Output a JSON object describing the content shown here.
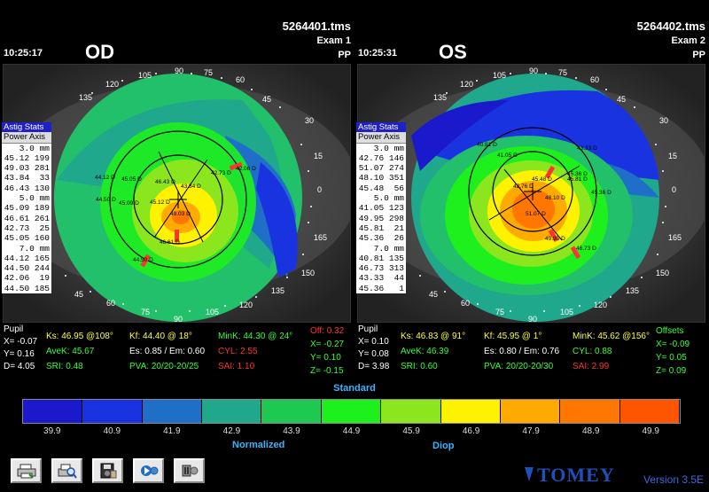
{
  "od": {
    "file": "5264401.tms",
    "exam": "Exam 1",
    "operator": "PP",
    "time": "10:25:17",
    "eye": "OD",
    "stats_header": "Astig Stats",
    "stats_subheader": "Power Axis",
    "stats_rows": [
      "3.0 mm",
      "45.12 199",
      "49.03 281",
      "43.84  33",
      "46.43 130",
      "5.0 mm",
      "45.09 189",
      "46.61 261",
      "42.73  25",
      "45.05 160",
      "7.0 mm",
      "44.12 165",
      "44.50 244",
      "42.06  19",
      "44.50 185"
    ],
    "map_labels": [
      "44.12 D",
      "45.05 D",
      "46.43 D",
      "42.73 D",
      "42.06 D",
      "44.50 D",
      "45.09 D",
      "43.84 D",
      "45.12 D",
      "49.03 D",
      "46.61 D",
      "44.50 D"
    ],
    "angles": {
      "a90": "90",
      "a75": "75",
      "a105": "105",
      "a120": "120",
      "a135": "135",
      "a150": "150",
      "a165": "165",
      "a0": "0",
      "a15": "15",
      "a30": "30",
      "a45": "45",
      "a60": "60"
    },
    "pupil_label": "Pupil",
    "pupil_x": "X= -0.07",
    "pupil_y": "Y=  0.16",
    "pupil_d": "D=  4.05",
    "ks": "Ks: 46.95 @108°",
    "kf": "Kf: 44.40 @ 18°",
    "mink": "MinK: 44.30 @ 24°",
    "off": "Off:  0.32",
    "avek": "AveK: 45.67",
    "es": "Es: 0.85 / Em: 0.60",
    "cyl": "CYL:  2.55",
    "off_x": "X= -0.27",
    "sri": "SRI: 0.48",
    "pva": "PVA: 20/20-20/25",
    "sai": "SAI: 1.10",
    "off_y": "Y=  0.10",
    "off_z": "Z= -0.15"
  },
  "os": {
    "file": "5264402.tms",
    "exam": "Exam 2",
    "operator": "PP",
    "time": "10:25:31",
    "eye": "OS",
    "stats_header": "Astig Stats",
    "stats_subheader": "Power Axis",
    "stats_rows": [
      "3.0 mm",
      "42.76 146",
      "51.07 274",
      "48.10 351",
      "45.48  56",
      "5.0 mm",
      "41.05 123",
      "49.95 298",
      "45.81  21",
      "45.36  26",
      "7.0 mm",
      "40.81 135",
      "46.73 313",
      "43.33  44",
      "45.36   1"
    ],
    "map_labels": [
      "40.81 D",
      "41.05 D",
      "43.33 D",
      "45.36 D",
      "45.81 D",
      "42.76 D",
      "45.48 D",
      "45.36 D",
      "48.10 D",
      "51.07 D",
      "49.95 D",
      "46.73 D"
    ],
    "angles": {
      "a90": "90",
      "a75": "75",
      "a105": "105",
      "a120": "120",
      "a135": "135",
      "a150": "150",
      "a165": "165",
      "a0": "0",
      "a15": "15",
      "a30": "30",
      "a45": "45",
      "a60": "60"
    },
    "pupil_label": "Pupil",
    "pupil_x": "X=  0.10",
    "pupil_y": "Y=  0.08",
    "pupil_d": "D=  3.98",
    "ks": "Ks: 46.83 @ 91°",
    "kf": "Kf: 45.95 @  1°",
    "mink": "MinK: 45.62 @156°",
    "off": "Offsets",
    "avek": "AveK: 46.39",
    "es": "Es: 0.80 / Em: 0.76",
    "cyl": "CYL:  0.88",
    "off_x": "X= -0.09",
    "sri": "SRI: 0.60",
    "pva": "PVA: 20/20-20/30",
    "sai": "SAI: 2.99",
    "off_y": "Y=  0.05",
    "off_z": "Z=  0.09"
  },
  "scale": {
    "title": "Standard",
    "normalized": "Normalized",
    "unit": "Diop",
    "values": [
      "39.9",
      "40.9",
      "41.9",
      "42.9",
      "43.9",
      "44.9",
      "45.9",
      "46.9",
      "47.9",
      "48.9",
      "49.9"
    ],
    "colors": [
      "#1a1acc",
      "#1a33e0",
      "#1f6fc8",
      "#1fa88c",
      "#1fc850",
      "#1ef01e",
      "#8ce61e",
      "#fff200",
      "#ffaa00",
      "#ff7700",
      "#ff5500"
    ]
  },
  "toolbar": {
    "icons": [
      "print-icon",
      "print-preview-icon",
      "save-icon",
      "play-icon",
      "stop-icon"
    ]
  },
  "brand": {
    "logo": "TOMEY",
    "version": "Version 3.5E"
  }
}
